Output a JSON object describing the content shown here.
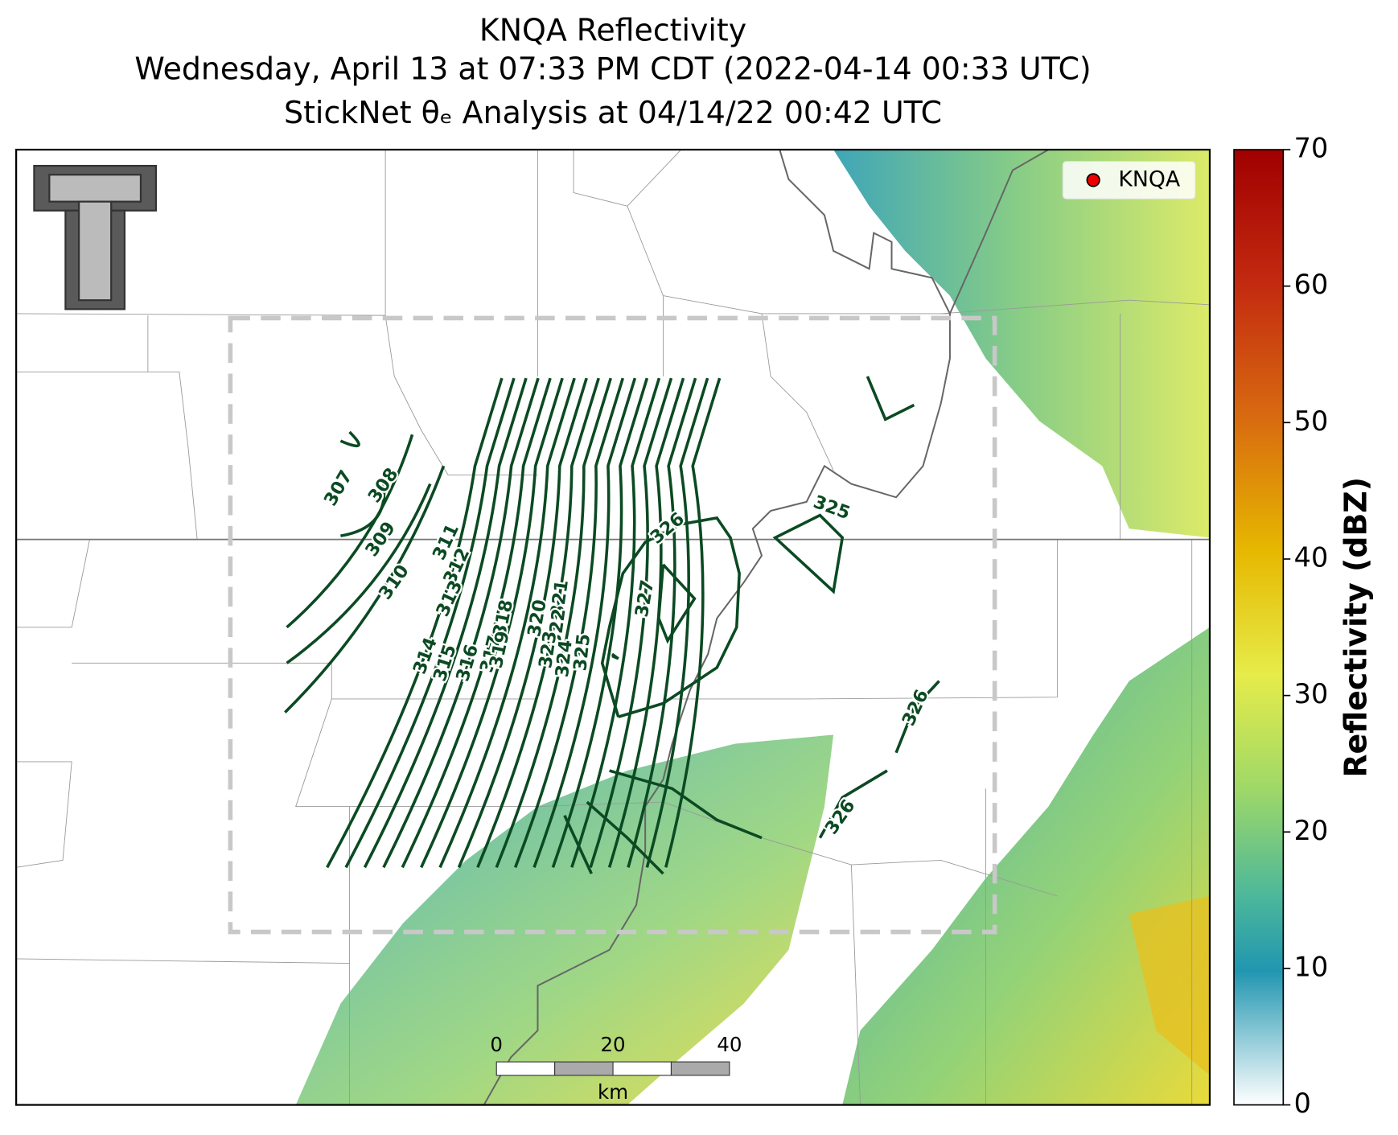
{
  "title": [
    "KNQA Reflectivity",
    "Wednesday, April 13 at 07:33 PM CDT (2022-04-14 00:33 UTC)",
    "StickNet θₑ Analysis at 04/14/22 00:42 UTC"
  ],
  "legend": {
    "label": "KNQA"
  },
  "colorbar": {
    "label": "Reflectivity (dBZ)",
    "lim": [
      0,
      70
    ],
    "ticks": [
      0,
      10,
      20,
      30,
      40,
      50,
      60,
      70
    ]
  },
  "scale_bar": {
    "ticks": [
      0,
      20,
      40
    ],
    "unit": "km"
  },
  "contour_labels": [
    307,
    308,
    309,
    310,
    311,
    312,
    313,
    314,
    315,
    316,
    317,
    318,
    319,
    320,
    321,
    322,
    323,
    324,
    325,
    326,
    327,
    325,
    326,
    326
  ]
}
